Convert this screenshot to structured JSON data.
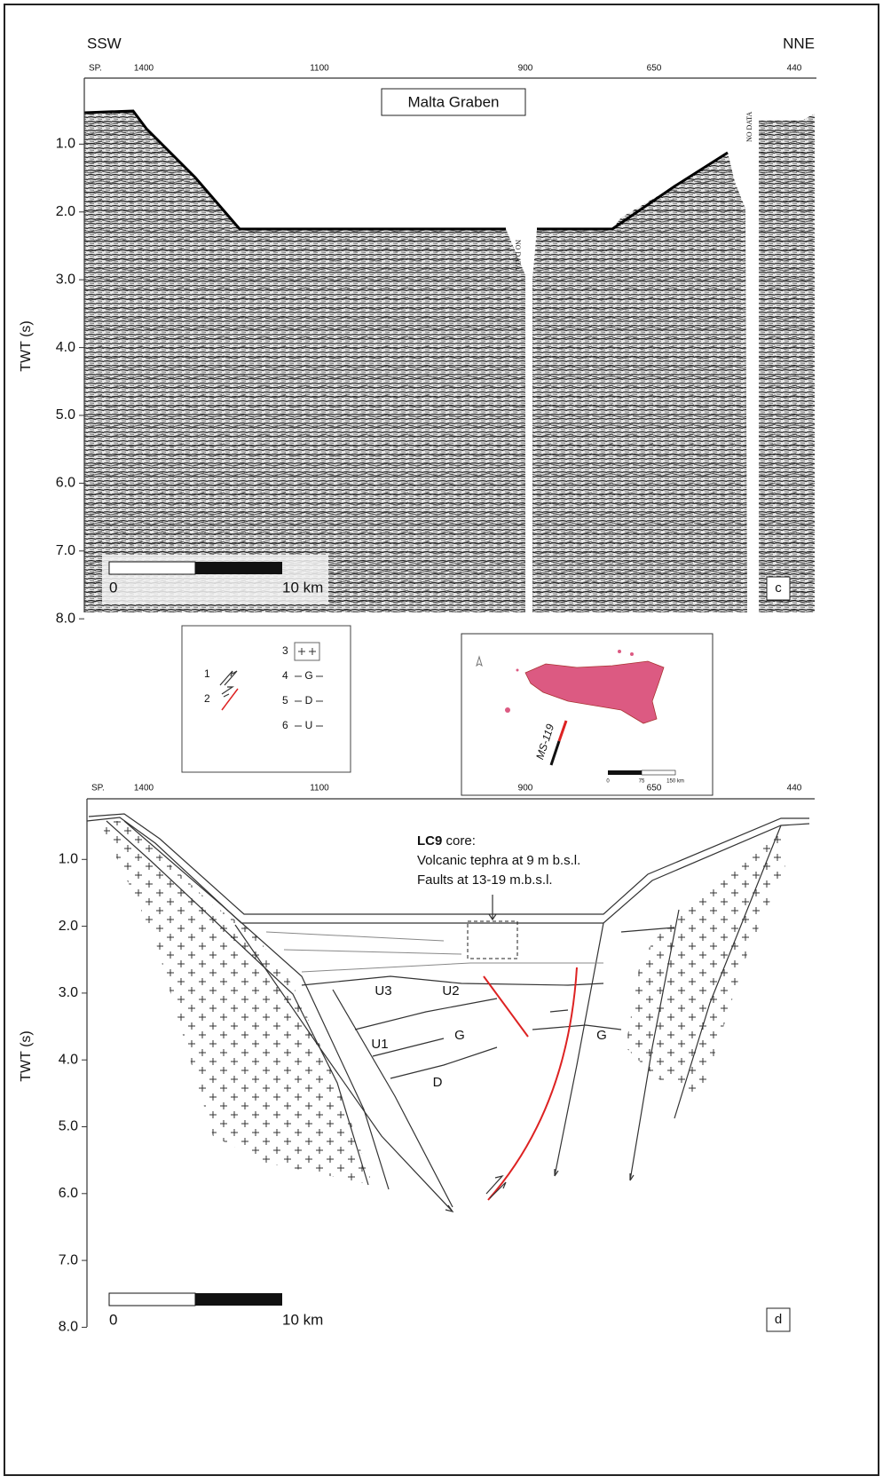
{
  "figure_c": {
    "left_label": "SSW",
    "right_label": "NNE",
    "shotpoint_prefix": "SP.",
    "shotpoints": [
      "1400",
      "1100",
      "900",
      "650",
      "440"
    ],
    "title": "Malta Graben",
    "y_axis_label": "TWT (s)",
    "y_ticks": [
      {
        "value": 1,
        "label": "1.0"
      },
      {
        "value": 2,
        "label": "2.0"
      },
      {
        "value": 3,
        "label": "3.0"
      },
      {
        "value": 4,
        "label": "4.0"
      },
      {
        "value": 5,
        "label": "5.0"
      },
      {
        "value": 6,
        "label": "6.0"
      },
      {
        "value": 7,
        "label": "7.0"
      },
      {
        "value": 8,
        "label": "8.0"
      }
    ],
    "no_data_labels": [
      "NO DATA",
      "NO DATA"
    ],
    "scale_bar": {
      "start": "0",
      "end": "10 km"
    },
    "panel_label": "c"
  },
  "legend": {
    "items": [
      {
        "number": "1"
      },
      {
        "number": "2"
      },
      {
        "number": "3"
      },
      {
        "number": "4",
        "label": "G"
      },
      {
        "number": "5",
        "label": "D"
      },
      {
        "number": "6",
        "label": "U"
      }
    ]
  },
  "inset_map": {
    "profile_label": "MS-119",
    "scale_labels": [
      "0",
      "75",
      "150 km"
    ]
  },
  "figure_d": {
    "shotpoint_prefix": "SP.",
    "shotpoints": [
      "1400",
      "1100",
      "900",
      "650",
      "440"
    ],
    "y_axis_label": "TWT (s)",
    "y_ticks": [
      {
        "value": 1,
        "label": "1.0"
      },
      {
        "value": 2,
        "label": "2.0"
      },
      {
        "value": 3,
        "label": "3.0"
      },
      {
        "value": 4,
        "label": "4.0"
      },
      {
        "value": 5,
        "label": "5.0"
      },
      {
        "value": 6,
        "label": "6.0"
      },
      {
        "value": 7,
        "label": "7.0"
      },
      {
        "value": 8,
        "label": "8.0"
      }
    ],
    "core_annotation": {
      "core_id": "LC9",
      "core_suffix": "core:",
      "lines": [
        "Volcanic tephra at 9 m b.s.l.",
        "Faults at 13-19 m.b.s.l."
      ]
    },
    "unit_labels": [
      "U3",
      "U2",
      "U1",
      "G",
      "G",
      "D"
    ],
    "scale_bar": {
      "start": "0",
      "end": "10 km"
    },
    "panel_label": "d"
  }
}
